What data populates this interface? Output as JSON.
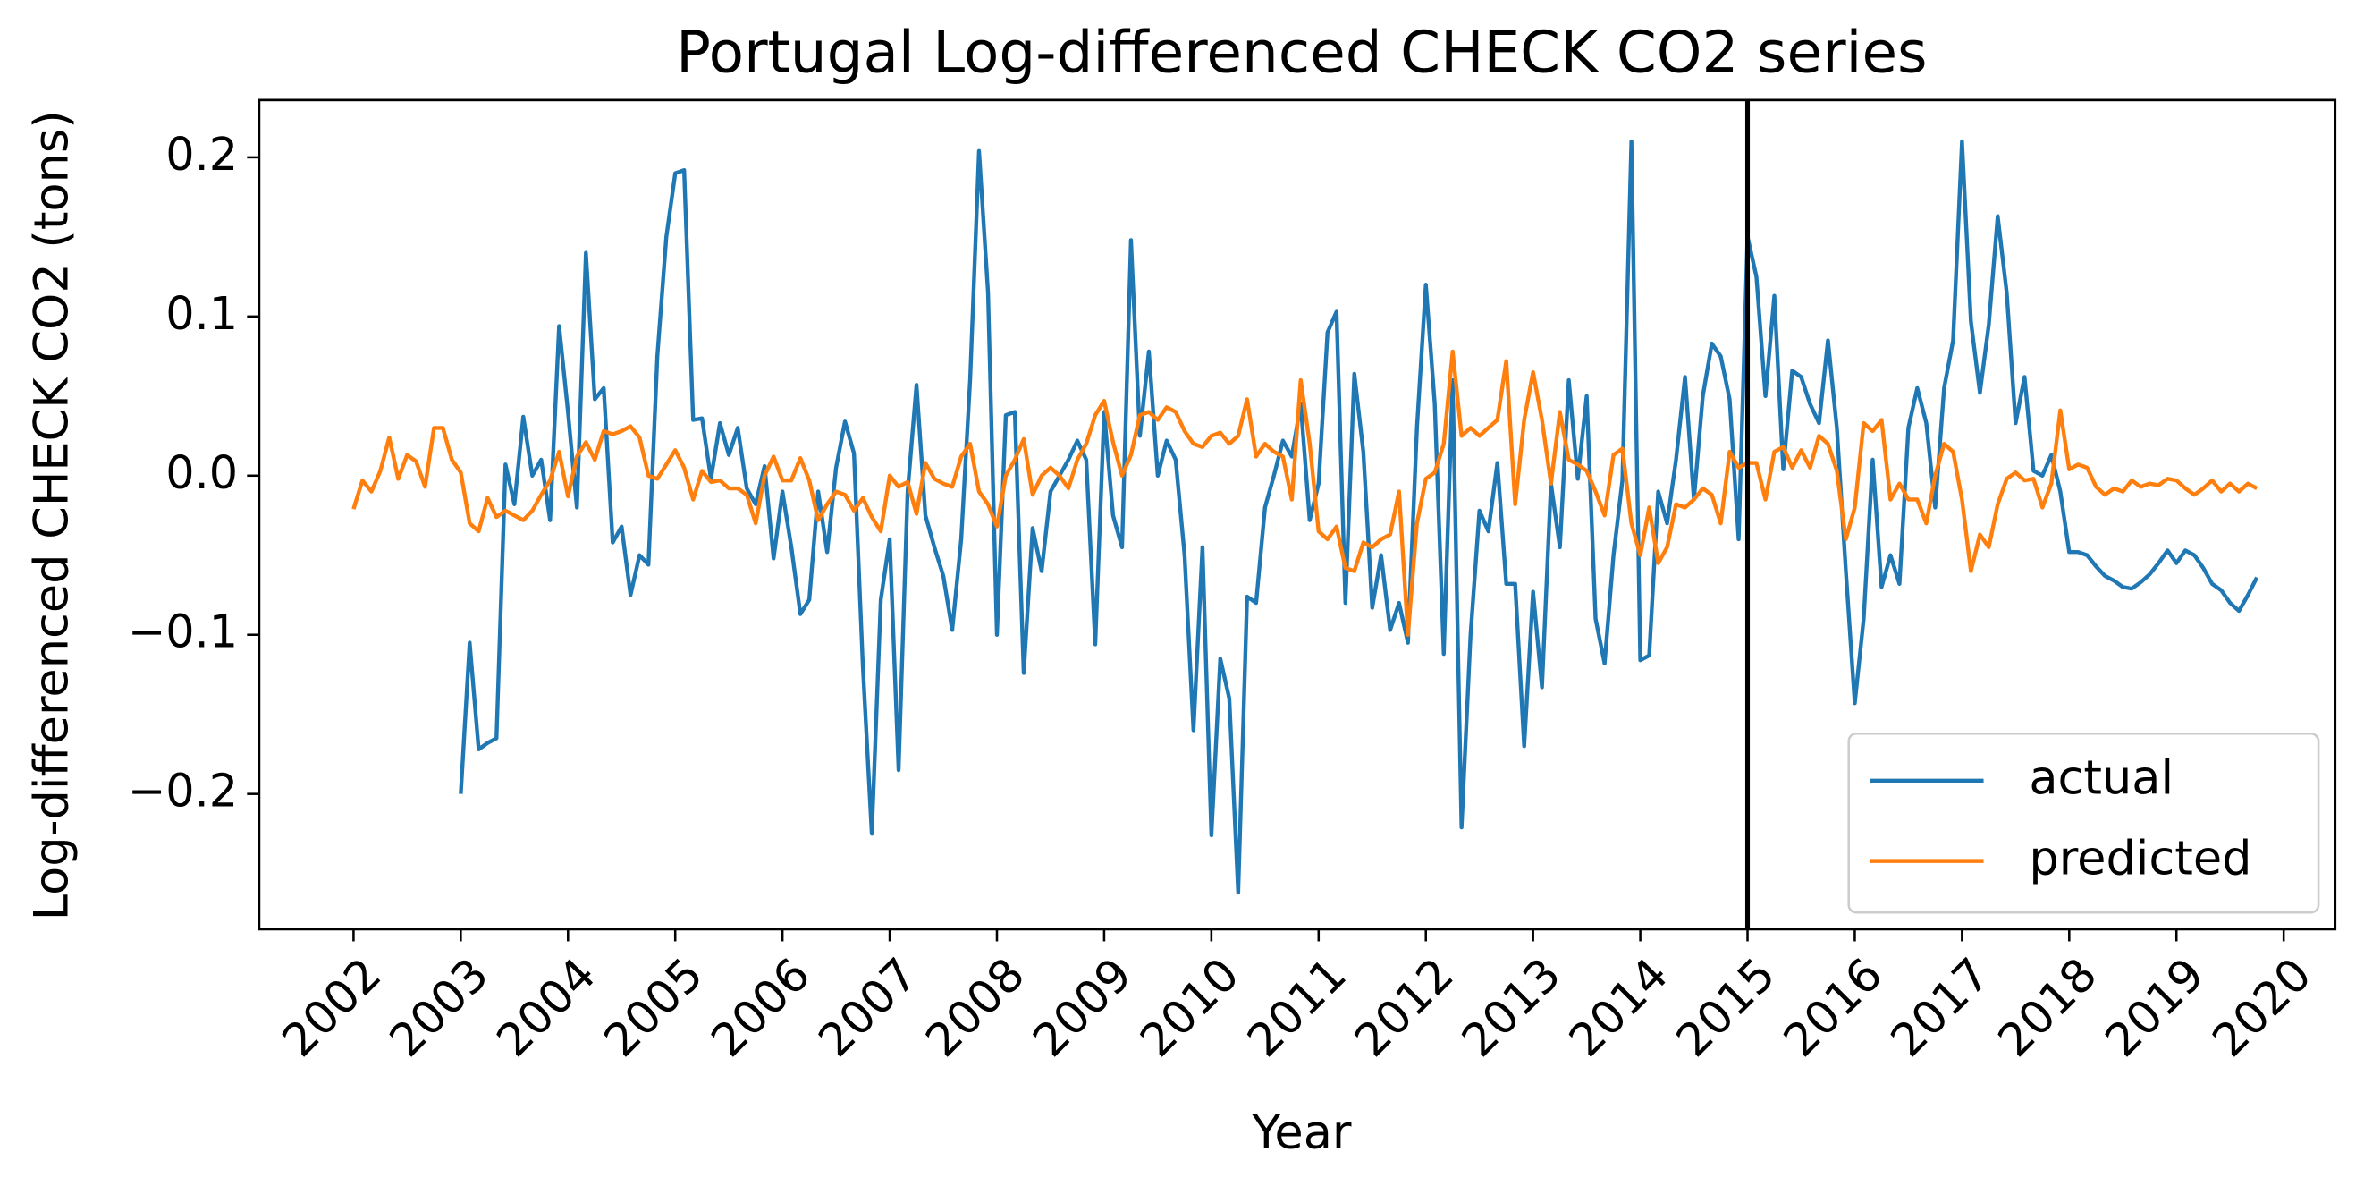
{
  "chart_data": {
    "type": "line",
    "title": "Portugal Log-differenced CHECK CO2 series",
    "x_label": "Year",
    "y_label": "Log-differenced CHECK CO2 (tons)",
    "x": [
      2002,
      2002.083,
      2002.167,
      2002.25,
      2002.333,
      2002.417,
      2002.5,
      2002.583,
      2002.667,
      2002.75,
      2002.833,
      2002.917,
      2003,
      2003.083,
      2003.167,
      2003.25,
      2003.333,
      2003.417,
      2003.5,
      2003.583,
      2003.667,
      2003.75,
      2003.833,
      2003.917,
      2004,
      2004.083,
      2004.167,
      2004.25,
      2004.333,
      2004.417,
      2004.5,
      2004.583,
      2004.667,
      2004.75,
      2004.833,
      2004.917,
      2005,
      2005.083,
      2005.167,
      2005.25,
      2005.333,
      2005.417,
      2005.5,
      2005.583,
      2005.667,
      2005.75,
      2005.833,
      2005.917,
      2006,
      2006.083,
      2006.167,
      2006.25,
      2006.333,
      2006.417,
      2006.5,
      2006.583,
      2006.667,
      2006.75,
      2006.833,
      2006.917,
      2007,
      2007.083,
      2007.167,
      2007.25,
      2007.333,
      2007.417,
      2007.5,
      2007.583,
      2007.667,
      2007.75,
      2007.833,
      2007.917,
      2008,
      2008.083,
      2008.167,
      2008.25,
      2008.333,
      2008.417,
      2008.5,
      2008.583,
      2008.667,
      2008.75,
      2008.833,
      2008.917,
      2009,
      2009.083,
      2009.167,
      2009.25,
      2009.333,
      2009.417,
      2009.5,
      2009.583,
      2009.667,
      2009.75,
      2009.833,
      2009.917,
      2010,
      2010.083,
      2010.167,
      2010.25,
      2010.333,
      2010.417,
      2010.5,
      2010.583,
      2010.667,
      2010.75,
      2010.833,
      2010.917,
      2011,
      2011.083,
      2011.167,
      2011.25,
      2011.333,
      2011.417,
      2011.5,
      2011.583,
      2011.667,
      2011.75,
      2011.833,
      2011.917,
      2012,
      2012.083,
      2012.167,
      2012.25,
      2012.333,
      2012.417,
      2012.5,
      2012.583,
      2012.667,
      2012.75,
      2012.833,
      2012.917,
      2013,
      2013.083,
      2013.167,
      2013.25,
      2013.333,
      2013.417,
      2013.5,
      2013.583,
      2013.667,
      2013.75,
      2013.833,
      2013.917,
      2014,
      2014.083,
      2014.167,
      2014.25,
      2014.333,
      2014.417,
      2014.5,
      2014.583,
      2014.667,
      2014.75,
      2014.833,
      2014.917,
      2015,
      2015.083,
      2015.167,
      2015.25,
      2015.333,
      2015.417,
      2015.5,
      2015.583,
      2015.667,
      2015.75,
      2015.833,
      2015.917,
      2016,
      2016.083,
      2016.167,
      2016.25,
      2016.333,
      2016.417,
      2016.5,
      2016.583,
      2016.667,
      2016.75,
      2016.833,
      2016.917,
      2017,
      2017.083,
      2017.167,
      2017.25,
      2017.333,
      2017.417,
      2017.5,
      2017.583,
      2017.667,
      2017.75,
      2017.833,
      2017.917,
      2018,
      2018.083,
      2018.167,
      2018.25,
      2018.333,
      2018.417,
      2018.5,
      2018.583,
      2018.667,
      2018.75,
      2018.833,
      2018.917,
      2019,
      2019.083,
      2019.167,
      2019.25,
      2019.333,
      2019.417,
      2019.5,
      2019.583,
      2019.667,
      2019.75
    ],
    "series": [
      {
        "name": "actual",
        "color": "#1f77b4",
        "values": [
          null,
          null,
          null,
          null,
          null,
          null,
          null,
          null,
          null,
          null,
          null,
          null,
          -0.2,
          -0.105,
          -0.172,
          -0.168,
          -0.165,
          0.007,
          -0.018,
          0.037,
          0.0,
          0.01,
          -0.028,
          0.094,
          0.04,
          -0.02,
          0.14,
          0.048,
          0.055,
          -0.042,
          -0.032,
          -0.075,
          -0.05,
          -0.056,
          0.075,
          0.15,
          0.19,
          0.192,
          0.035,
          0.036,
          -0.002,
          0.033,
          0.013,
          0.03,
          -0.008,
          -0.018,
          0.006,
          -0.052,
          -0.01,
          -0.045,
          -0.087,
          -0.078,
          -0.01,
          -0.048,
          0.005,
          0.034,
          0.014,
          -0.12,
          -0.225,
          -0.078,
          -0.04,
          -0.185,
          -0.01,
          0.057,
          -0.025,
          -0.045,
          -0.063,
          -0.097,
          -0.04,
          0.06,
          0.204,
          0.115,
          -0.1,
          0.038,
          0.04,
          -0.124,
          -0.033,
          -0.06,
          -0.01,
          0.0,
          0.01,
          0.022,
          0.01,
          -0.106,
          0.04,
          -0.025,
          -0.045,
          0.148,
          0.025,
          0.078,
          0.0,
          0.022,
          0.01,
          -0.05,
          -0.16,
          -0.045,
          -0.226,
          -0.115,
          -0.14,
          -0.262,
          -0.076,
          -0.08,
          -0.02,
          0.0,
          0.022,
          0.012,
          0.045,
          -0.028,
          -0.005,
          0.09,
          0.103,
          -0.08,
          0.064,
          0.015,
          -0.083,
          -0.05,
          -0.097,
          -0.08,
          -0.105,
          0.03,
          0.12,
          0.045,
          -0.112,
          0.06,
          -0.221,
          -0.1,
          -0.022,
          -0.035,
          0.008,
          -0.068,
          -0.068,
          -0.17,
          -0.073,
          -0.133,
          -0.005,
          -0.045,
          0.06,
          -0.002,
          0.05,
          -0.09,
          -0.118,
          -0.05,
          -0.003,
          0.21,
          -0.116,
          -0.113,
          -0.01,
          -0.03,
          0.01,
          0.062,
          -0.015,
          0.05,
          0.083,
          0.075,
          0.048,
          -0.04,
          0.15,
          0.125,
          0.05,
          0.113,
          0.004,
          0.066,
          0.062,
          0.045,
          0.033,
          0.085,
          0.03,
          -0.06,
          -0.143,
          -0.09,
          0.01,
          -0.07,
          -0.05,
          -0.068,
          0.03,
          0.055,
          0.033,
          -0.02,
          0.055,
          0.085,
          0.21,
          0.097,
          0.052,
          0.095,
          0.163,
          0.115,
          0.033,
          0.062,
          0.003,
          0.0,
          0.013,
          -0.01,
          -0.048,
          -0.048,
          -0.05,
          -0.057,
          -0.063,
          -0.066,
          -0.07,
          -0.071,
          -0.067,
          -0.062,
          -0.055,
          -0.047,
          -0.055,
          -0.047,
          -0.05,
          -0.058,
          -0.068,
          -0.072,
          -0.08,
          -0.085,
          -0.075,
          -0.064
        ]
      },
      {
        "name": "predicted",
        "color": "#ff7f0e",
        "values": [
          -0.021,
          -0.003,
          -0.01,
          0.003,
          0.024,
          -0.002,
          0.013,
          0.009,
          -0.007,
          0.03,
          0.03,
          0.01,
          0.002,
          -0.03,
          -0.035,
          -0.014,
          -0.026,
          -0.022,
          -0.025,
          -0.028,
          -0.022,
          -0.012,
          -0.003,
          0.015,
          -0.013,
          0.012,
          0.021,
          0.01,
          0.028,
          0.026,
          0.028,
          0.031,
          0.024,
          0.0,
          -0.002,
          0.007,
          0.016,
          0.005,
          -0.015,
          0.003,
          -0.004,
          -0.003,
          -0.008,
          -0.008,
          -0.012,
          -0.03,
          0.0,
          0.012,
          -0.003,
          -0.003,
          0.011,
          -0.003,
          -0.028,
          -0.018,
          -0.01,
          -0.012,
          -0.022,
          -0.014,
          -0.026,
          -0.035,
          0.0,
          -0.007,
          -0.004,
          -0.024,
          0.008,
          -0.002,
          -0.005,
          -0.007,
          0.012,
          0.02,
          -0.01,
          -0.018,
          -0.032,
          0.0,
          0.01,
          0.023,
          -0.012,
          0.0,
          0.005,
          0.0,
          -0.008,
          0.01,
          0.02,
          0.038,
          0.047,
          0.021,
          0.0,
          0.013,
          0.038,
          0.04,
          0.035,
          0.043,
          0.04,
          0.028,
          0.02,
          0.018,
          0.025,
          0.027,
          0.02,
          0.025,
          0.048,
          0.012,
          0.02,
          0.015,
          0.012,
          -0.015,
          0.06,
          0.02,
          -0.035,
          -0.04,
          -0.032,
          -0.058,
          -0.06,
          -0.042,
          -0.045,
          -0.04,
          -0.037,
          -0.01,
          -0.1,
          -0.03,
          -0.002,
          0.002,
          0.02,
          0.078,
          0.025,
          0.03,
          0.025,
          0.03,
          0.035,
          0.072,
          -0.018,
          0.035,
          0.065,
          0.035,
          -0.005,
          0.04,
          0.01,
          0.007,
          0.003,
          -0.01,
          -0.025,
          0.013,
          0.017,
          -0.03,
          -0.05,
          -0.02,
          -0.055,
          -0.045,
          -0.018,
          -0.02,
          -0.015,
          -0.008,
          -0.012,
          -0.03,
          0.015,
          0.005,
          0.008,
          0.008,
          -0.015,
          0.015,
          0.018,
          0.005,
          0.016,
          0.005,
          0.025,
          0.02,
          0.003,
          -0.04,
          -0.02,
          0.033,
          0.028,
          0.035,
          -0.015,
          -0.005,
          -0.015,
          -0.015,
          -0.03,
          0.0,
          0.02,
          0.015,
          -0.015,
          -0.06,
          -0.037,
          -0.045,
          -0.018,
          -0.002,
          0.002,
          -0.003,
          -0.002,
          -0.02,
          -0.005,
          0.041,
          0.004,
          0.007,
          0.005,
          -0.007,
          -0.012,
          -0.008,
          -0.01,
          -0.003,
          -0.007,
          -0.005,
          -0.006,
          -0.002,
          -0.003,
          -0.008,
          -0.012,
          -0.008,
          -0.003,
          -0.01,
          -0.005,
          -0.01,
          -0.005,
          -0.008
        ]
      }
    ],
    "xlim": [
      2001.12,
      2020.48
    ],
    "xticks": [
      2002,
      2003,
      2004,
      2005,
      2006,
      2007,
      2008,
      2009,
      2010,
      2011,
      2012,
      2013,
      2014,
      2015,
      2016,
      2017,
      2018,
      2019,
      2020
    ],
    "ylim": [
      -0.285,
      0.236
    ],
    "yticks": [
      {
        "value": -0.2,
        "label": "−0.2"
      },
      {
        "value": -0.1,
        "label": "−0.1"
      },
      {
        "value": 0,
        "label": "0.0"
      },
      0.1,
      0.2
    ],
    "vlines": [
      2015
    ],
    "vline_color": "#000000",
    "grid": false,
    "legend": "lower right"
  }
}
